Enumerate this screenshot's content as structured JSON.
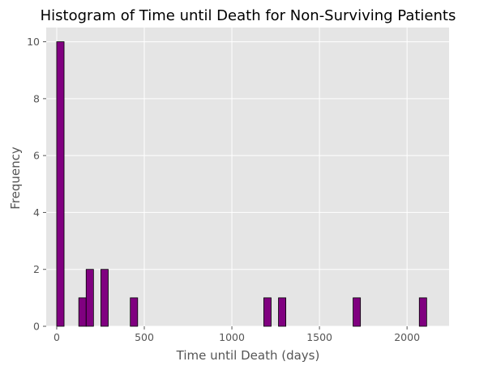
{
  "chart_data": {
    "type": "bar",
    "title": "Histogram of Time until Death for Non-Surviving Patients",
    "xlabel": "Time until Death (days)",
    "ylabel": "Frequency",
    "xlim": [
      -60,
      2240
    ],
    "ylim": [
      0,
      10.5
    ],
    "xticks": [
      0,
      500,
      1000,
      1500,
      2000
    ],
    "yticks": [
      0,
      2,
      4,
      6,
      8,
      10
    ],
    "grid": true,
    "bin_width": 42,
    "bins": [
      {
        "start": 0,
        "count": 10
      },
      {
        "start": 126,
        "count": 1
      },
      {
        "start": 168,
        "count": 2
      },
      {
        "start": 252,
        "count": 2
      },
      {
        "start": 420,
        "count": 1
      },
      {
        "start": 1182,
        "count": 1
      },
      {
        "start": 1266,
        "count": 1
      },
      {
        "start": 1692,
        "count": 1
      },
      {
        "start": 2070,
        "count": 1
      }
    ],
    "colors": {
      "bar_fill": "#800080",
      "bar_edge": "#000000",
      "plot_background": "#e5e5e5",
      "grid": "#ffffff"
    }
  }
}
